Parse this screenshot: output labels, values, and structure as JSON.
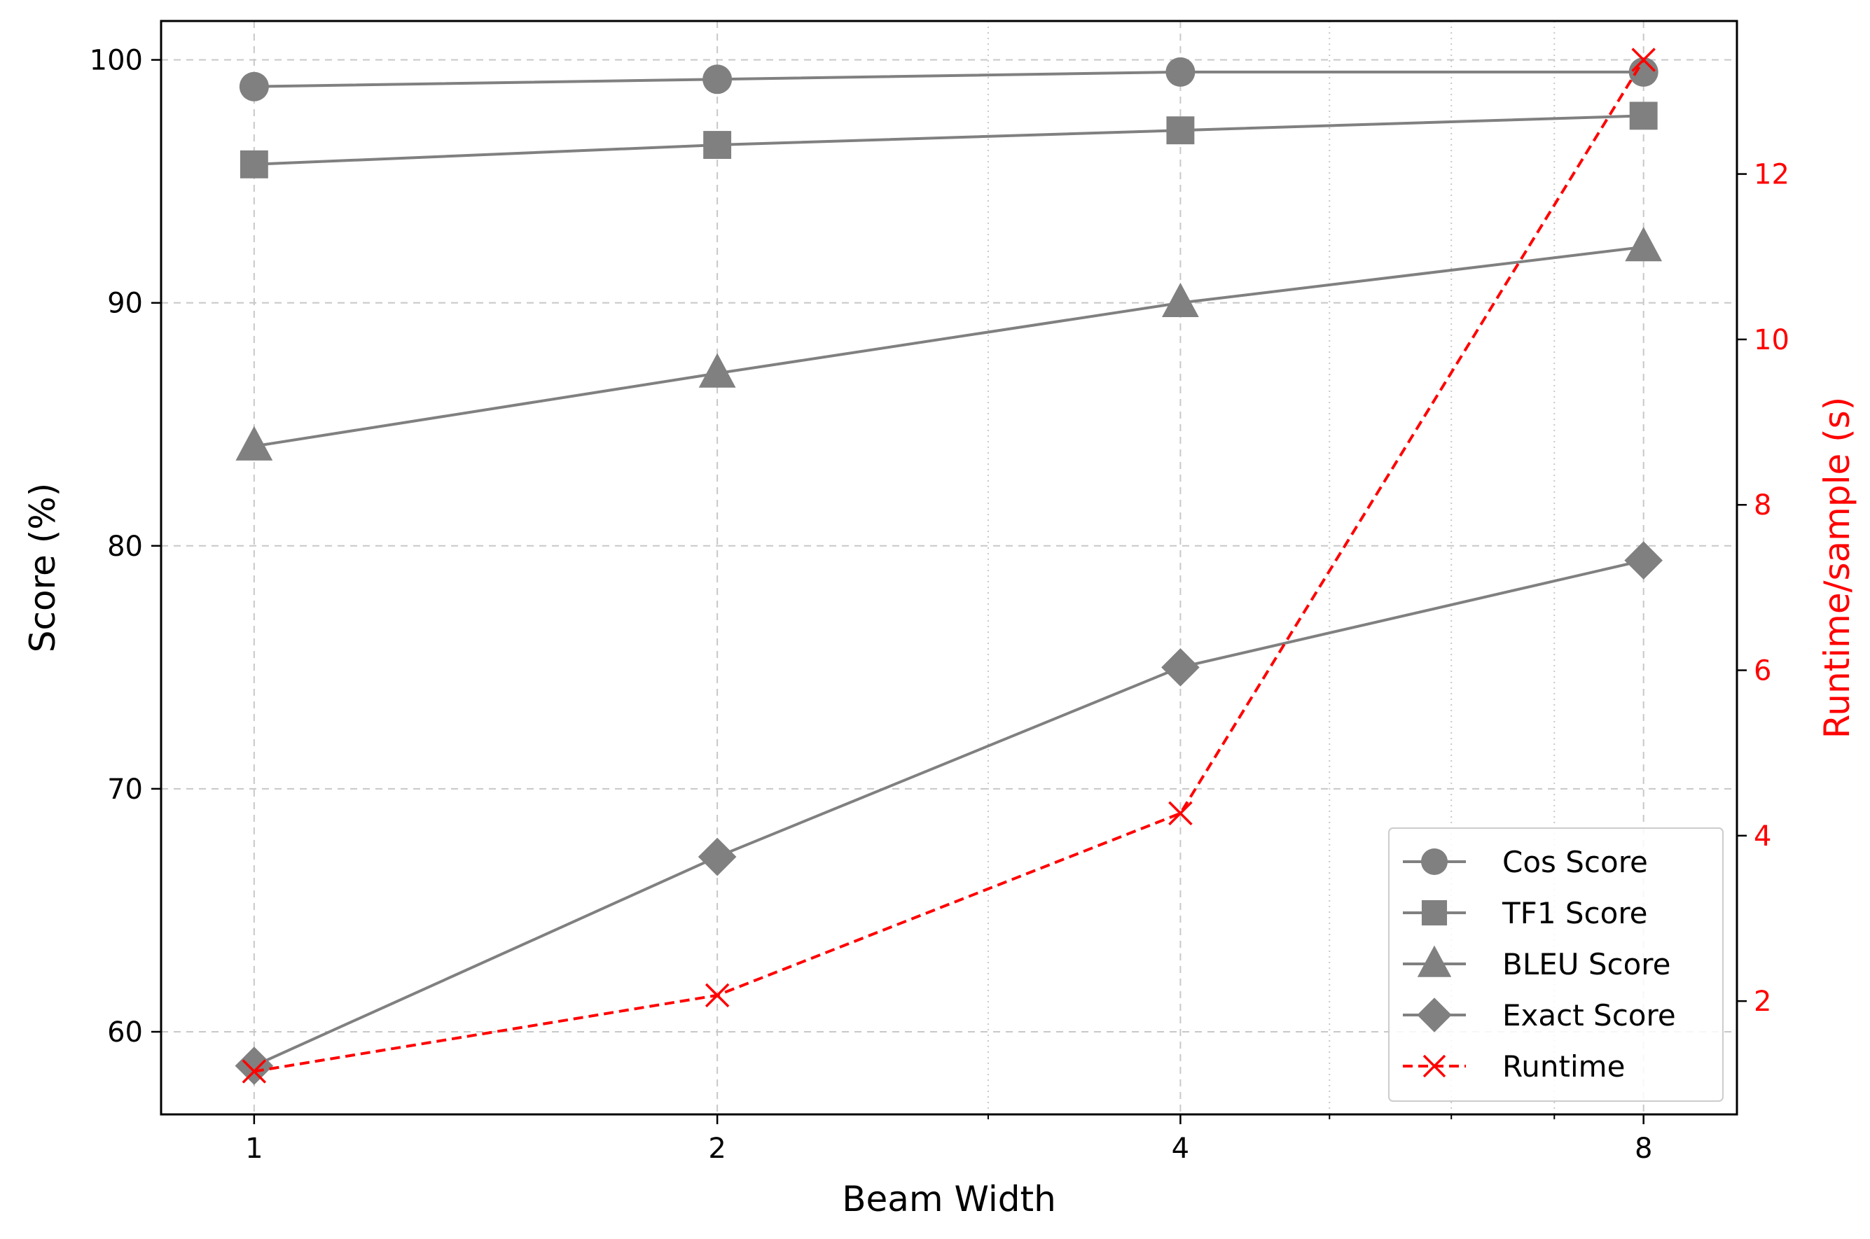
{
  "chart_data": {
    "type": "line",
    "xlabel": "Beam Width",
    "ylabel": "Score (%)",
    "y2label": "Runtime/sample (s)",
    "x": [
      1,
      2,
      4,
      8
    ],
    "x_scale": "log2",
    "x_tick_labels": [
      "1",
      "2",
      "4",
      "8"
    ],
    "xlim": [
      0.87,
      9.2
    ],
    "ylim": [
      56.6,
      101.6
    ],
    "y2lim": [
      0.63,
      13.85
    ],
    "y_ticks": [
      60,
      70,
      80,
      90,
      100
    ],
    "y2_ticks": [
      2,
      4,
      6,
      8,
      10,
      12
    ],
    "grid": true,
    "legend_position": "lower-right",
    "colors": {
      "score": "#808080",
      "runtime": "#ff0000",
      "grid": "#c8c8c8"
    },
    "series": [
      {
        "name": "Cos Score",
        "axis": "left",
        "marker": "circle",
        "values": [
          98.9,
          99.2,
          99.5,
          99.5
        ]
      },
      {
        "name": "TF1 Score",
        "axis": "left",
        "marker": "square",
        "values": [
          95.7,
          96.5,
          97.1,
          97.7
        ]
      },
      {
        "name": "BLEU Score",
        "axis": "left",
        "marker": "triangle",
        "values": [
          84.1,
          87.1,
          90.0,
          92.3
        ]
      },
      {
        "name": "Exact Score",
        "axis": "left",
        "marker": "diamond",
        "values": [
          58.6,
          67.2,
          75.0,
          79.4
        ]
      },
      {
        "name": "Runtime",
        "axis": "right",
        "marker": "x",
        "dashed": true,
        "values": [
          1.15,
          2.07,
          4.27,
          13.38
        ]
      }
    ]
  }
}
